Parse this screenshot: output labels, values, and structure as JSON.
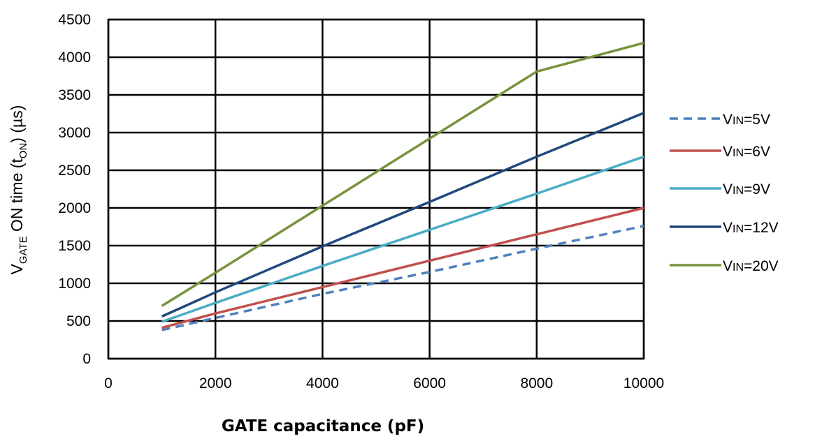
{
  "chart_data": {
    "type": "line",
    "xlabel": "GATE capacitance (pF)",
    "ylabel": {
      "main": "V",
      "main_sub": "GATE",
      "middle": " ON time (t",
      "middle_sub": "ON",
      "end": ") (µs)"
    },
    "xlim": [
      0,
      10000
    ],
    "ylim": [
      0,
      4500
    ],
    "x_ticks": [
      0,
      2000,
      4000,
      6000,
      8000,
      10000
    ],
    "y_ticks": [
      0,
      500,
      1000,
      1500,
      2000,
      2500,
      3000,
      3500,
      4000,
      4500
    ],
    "grid": true,
    "legend_position": "right",
    "x": [
      1000,
      2000,
      4000,
      6000,
      8000,
      10000
    ],
    "series": [
      {
        "name": "=5V",
        "legend_prefix": "V",
        "legend_sub": "IN",
        "values": [
          380,
          540,
          860,
          1150,
          1460,
          1760
        ],
        "color": "#4f81bd",
        "dash": true
      },
      {
        "name": "=6V",
        "legend_prefix": "V",
        "legend_sub": "IN",
        "values": [
          410,
          600,
          950,
          1300,
          1650,
          2000
        ],
        "color": "#c0504d",
        "dash": false
      },
      {
        "name": "=9V",
        "legend_prefix": "V",
        "legend_sub": "IN",
        "values": [
          490,
          740,
          1230,
          1710,
          2190,
          2680
        ],
        "color": "#4bacc6",
        "dash": false
      },
      {
        "name": "=12V",
        "legend_prefix": "V",
        "legend_sub": "IN",
        "values": [
          560,
          880,
          1490,
          2080,
          2680,
          3260
        ],
        "color": "#1f497d",
        "dash": false
      },
      {
        "name": "=20V",
        "legend_prefix": "V",
        "legend_sub": "IN",
        "values": [
          700,
          1140,
          2030,
          2920,
          3810,
          4190
        ],
        "color": "#77933c",
        "dash": false
      }
    ]
  }
}
